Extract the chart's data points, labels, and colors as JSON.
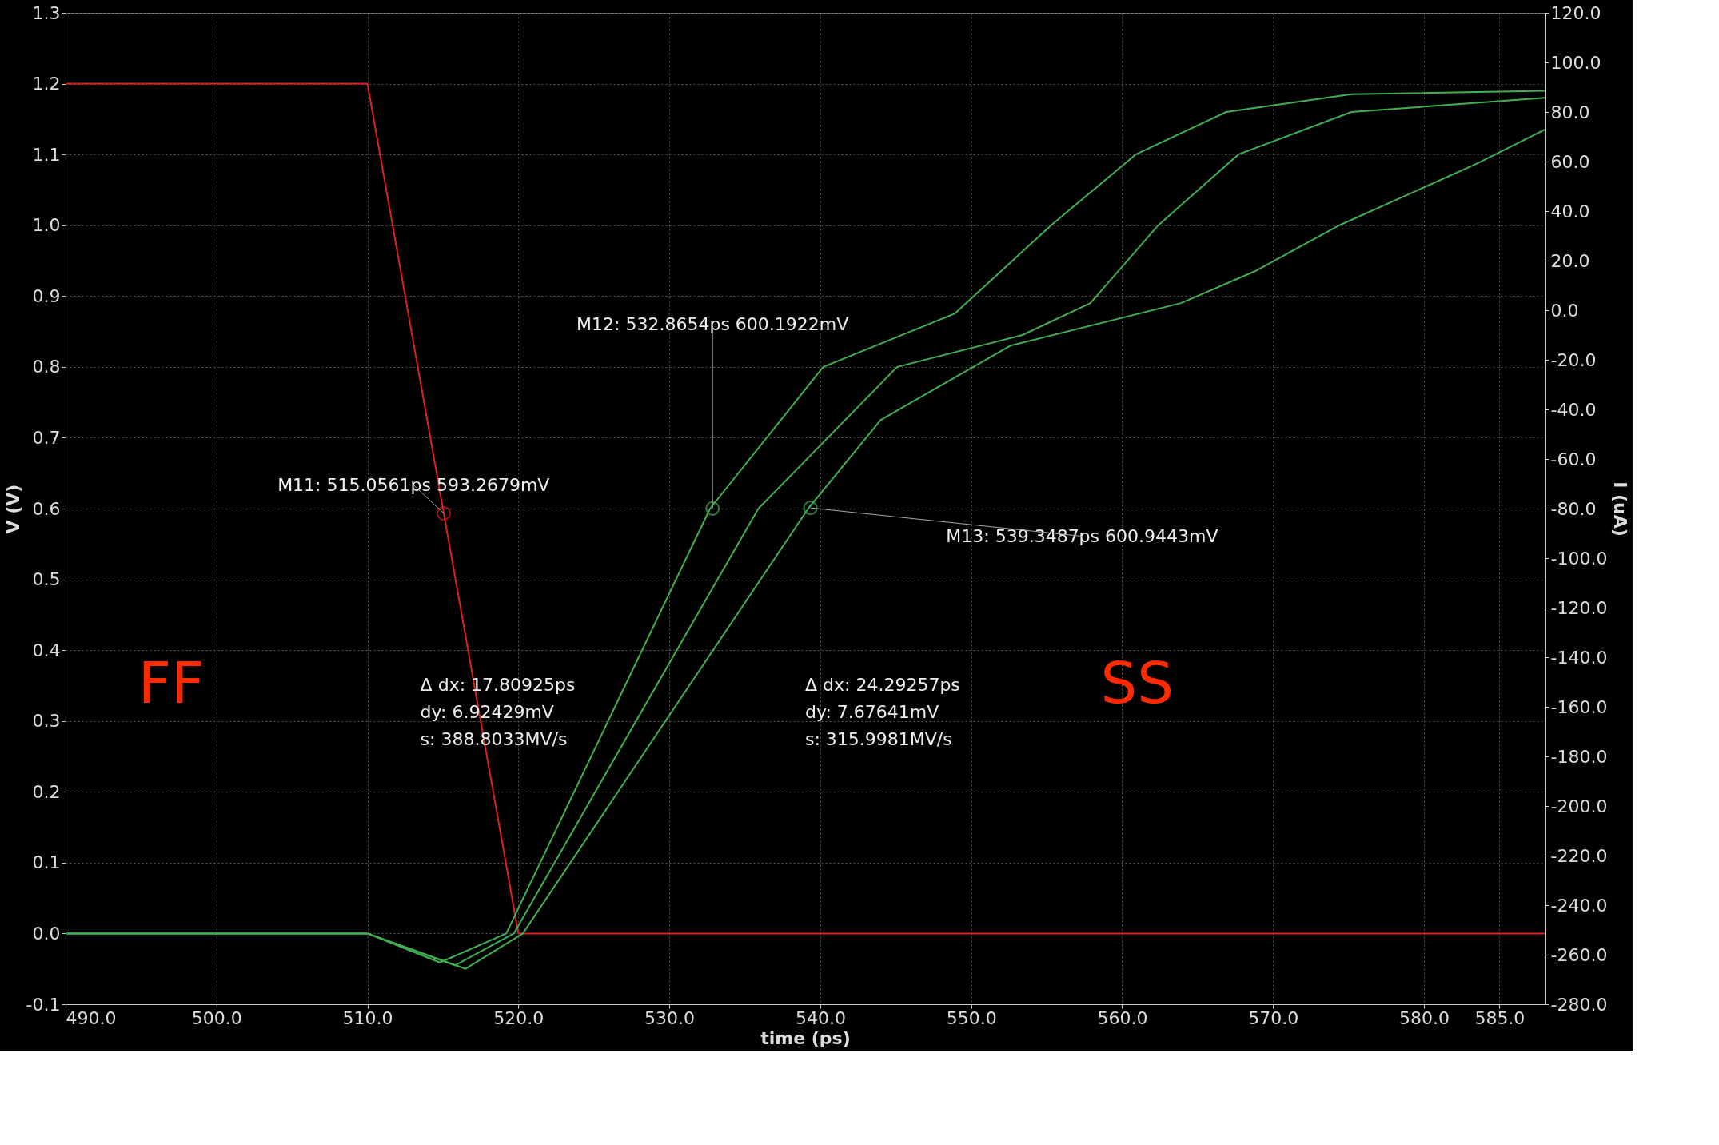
{
  "chart_data": {
    "type": "line",
    "xlabel": "time (ps)",
    "ylabel": "V (V)",
    "y2label": "I (uA)",
    "line_style": "solid",
    "xlim": [
      490.0,
      588.0
    ],
    "xticks": [
      {
        "value": 490,
        "label": "490.0"
      },
      {
        "value": 500,
        "label": "500.0"
      },
      {
        "value": 510,
        "label": "510.0"
      },
      {
        "value": 520,
        "label": "520.0"
      },
      {
        "value": 530,
        "label": "530.0"
      },
      {
        "value": 540,
        "label": "540.0"
      },
      {
        "value": 550,
        "label": "550.0"
      },
      {
        "value": 560,
        "label": "560.0"
      },
      {
        "value": 570,
        "label": "570.0"
      },
      {
        "value": 580,
        "label": "580.0"
      },
      {
        "value": 585,
        "label": "585.0"
      }
    ],
    "ylim": [
      -0.1,
      1.3
    ],
    "yticks": [
      -0.1,
      {
        "value": 0,
        "label": "0.0"
      },
      0.1,
      0.2,
      0.3,
      0.4,
      0.5,
      0.6,
      0.7,
      0.8,
      0.9,
      {
        "value": 1,
        "label": "1.0"
      },
      1.1,
      1.2,
      1.3
    ],
    "y2lim": [
      -280,
      120
    ],
    "y2ticks": [
      {
        "value": -280,
        "label": "-280.0"
      },
      {
        "value": -260,
        "label": "-260.0"
      },
      {
        "value": -240,
        "label": "-240.0"
      },
      {
        "value": -220,
        "label": "-220.0"
      },
      {
        "value": -200,
        "label": "-200.0"
      },
      {
        "value": -180,
        "label": "-180.0"
      },
      {
        "value": -160,
        "label": "-160.0"
      },
      {
        "value": -140,
        "label": "-140.0"
      },
      {
        "value": -120,
        "label": "-120.0"
      },
      {
        "value": -100,
        "label": "-100.0"
      },
      {
        "value": -80,
        "label": "-80.0"
      },
      {
        "value": -60,
        "label": "-60.0"
      },
      {
        "value": -40,
        "label": "-40.0"
      },
      {
        "value": -20,
        "label": "-20.0"
      },
      {
        "value": 0,
        "label": "0.0"
      },
      {
        "value": 20,
        "label": "20.0"
      },
      {
        "value": 40,
        "label": "40.0"
      },
      {
        "value": 60,
        "label": "60.0"
      },
      {
        "value": 80,
        "label": "80.0"
      },
      {
        "value": 100,
        "label": "100.0"
      },
      {
        "value": 120,
        "label": "120.0"
      }
    ],
    "grid": true,
    "series": [
      {
        "type": "line",
        "color": "#e02020",
        "x": [
          490.0,
          510.0,
          520.0,
          588.0
        ],
        "values": [
          1.2,
          1.2,
          0.0,
          0.0
        ]
      },
      {
        "type": "line",
        "color": "#40b050",
        "x": [
          490.0,
          510.0,
          514.8,
          519.2,
          532.7,
          540.2,
          548.9,
          555.3,
          560.9,
          566.9,
          575.2,
          588.0
        ],
        "values": [
          0.0,
          0.0,
          -0.041,
          0.0,
          0.6,
          0.8,
          0.875,
          1.0,
          1.1,
          1.16,
          1.185,
          1.19
        ]
      },
      {
        "type": "line",
        "color": "#40b050",
        "x": [
          490.0,
          510.0,
          515.8,
          519.7,
          535.9,
          545.1,
          553.4,
          557.9,
          562.4,
          567.7,
          575.2,
          588.0
        ],
        "values": [
          0.0,
          0.0,
          -0.045,
          0.0,
          0.6,
          0.8,
          0.845,
          0.89,
          1.0,
          1.1,
          1.16,
          1.18
        ]
      },
      {
        "type": "line",
        "color": "#40b050",
        "x": [
          490.0,
          510.0,
          516.5,
          520.3,
          539.2,
          544.0,
          552.6,
          563.9,
          568.8,
          574.4,
          583.5,
          588.0
        ],
        "values": [
          0.0,
          0.0,
          -0.05,
          0.0,
          0.6,
          0.725,
          0.83,
          0.89,
          0.935,
          1.0,
          1.087,
          1.135
        ]
      },
      {
        "type": "scatter",
        "marker": "circle",
        "x": [
          515.0561,
          532.8654,
          539.3487
        ],
        "values": [
          0.5932679,
          0.6001922,
          0.6009443
        ],
        "colors": [
          "#e02020",
          "#40b050",
          "#40b050"
        ]
      }
    ],
    "annotations": [
      {
        "text": "M11: 515.0561ps 593.2679mV",
        "x": 515.0561,
        "y": 0.5932679
      },
      {
        "text": "M12: 532.8654ps 600.1922mV",
        "x": 532.8654,
        "y": 0.6001922
      },
      {
        "text": "M13: 539.3487ps 600.9443mV",
        "x": 539.3487,
        "y": 0.6009443
      },
      "Δ dx: 17.80925ps\ndy: 6.92429mV\ns: 388.8033MV/s",
      "Δ dx: 24.29257ps\ndy: 7.67641mV\ns: 315.9981MV/s",
      "FF",
      "SS"
    ]
  }
}
